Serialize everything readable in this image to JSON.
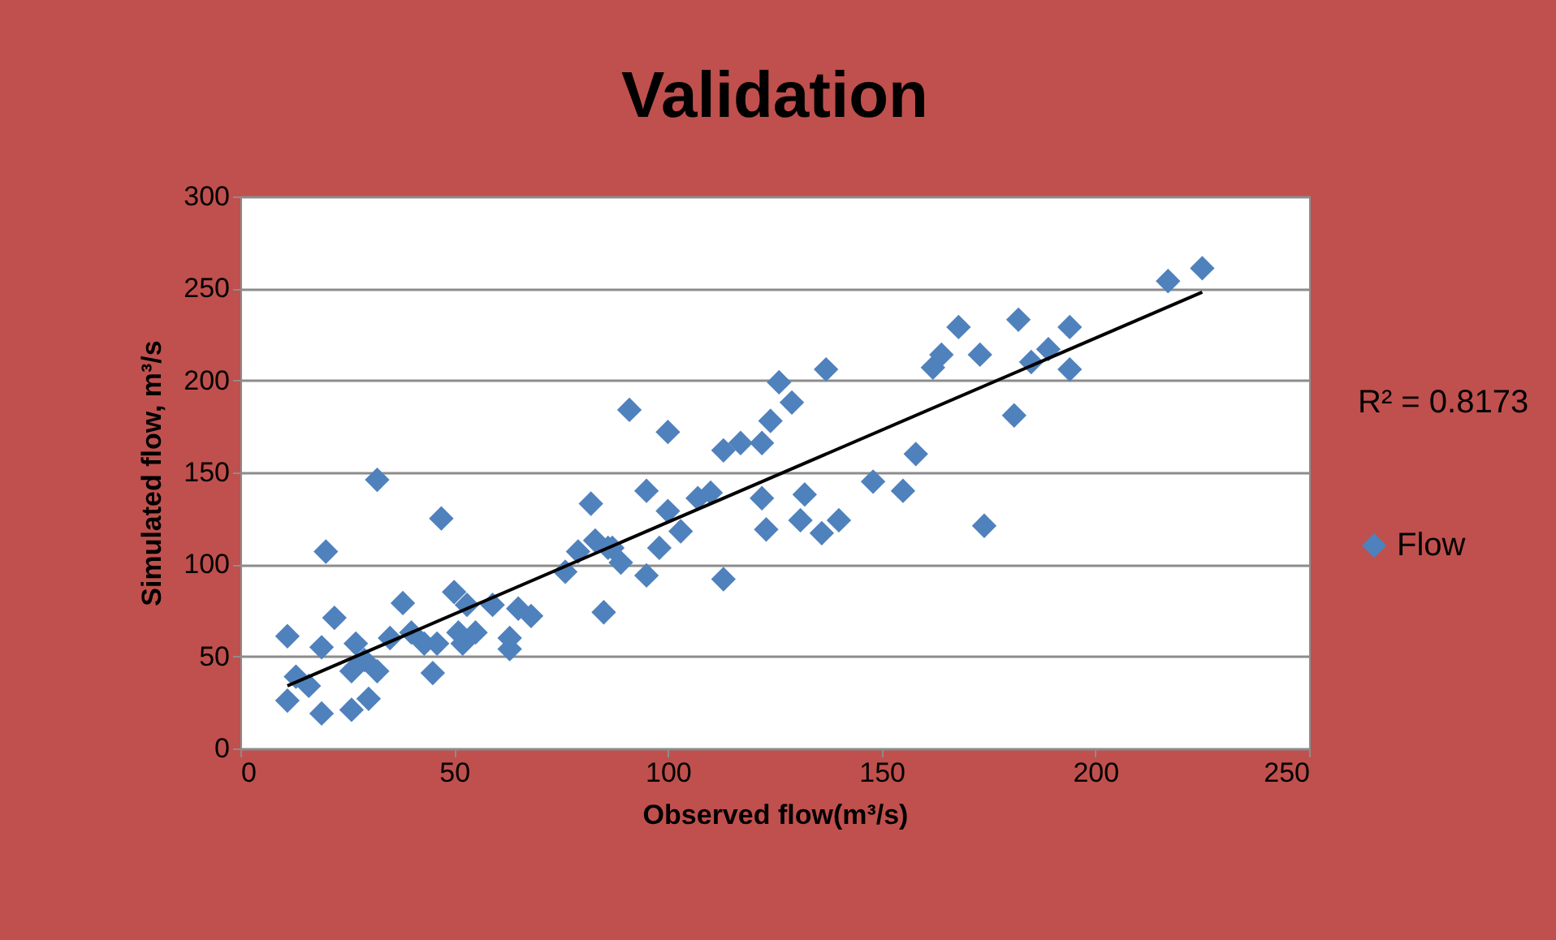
{
  "chart_data": {
    "type": "scatter",
    "title": "Validation",
    "xlabel": "Observed flow(m³/s)",
    "ylabel": "Simulated flow, m³/s",
    "xlim": [
      0,
      250
    ],
    "xticks": [
      0,
      50,
      100,
      150,
      200,
      250
    ],
    "ylim": [
      0,
      300
    ],
    "yticks": [
      0,
      50,
      100,
      150,
      200,
      250,
      300
    ],
    "grid": "y",
    "legend": "right",
    "annotations": [
      "R² = 0.8173"
    ],
    "series": [
      {
        "name": "Flow",
        "marker": "diamond",
        "color": "#4f81bd",
        "x": [
          11,
          13,
          11,
          19,
          16,
          20,
          22,
          19,
          26,
          30,
          27,
          26,
          32,
          29,
          32,
          35,
          38,
          40,
          43,
          45,
          46,
          47,
          50,
          51,
          52,
          55,
          53,
          59,
          63,
          65,
          68,
          63,
          76,
          79,
          82,
          83,
          85,
          86,
          89,
          87,
          91,
          95,
          100,
          95,
          100,
          98,
          103,
          107,
          110,
          113,
          113,
          117,
          122,
          124,
          126,
          129,
          137,
          122,
          123,
          132,
          131,
          136,
          140,
          148,
          155,
          158,
          174,
          181,
          162,
          164,
          168,
          173,
          182,
          185,
          189,
          194,
          194,
          217,
          225
        ],
        "values": [
          61,
          39,
          26,
          19,
          34,
          107,
          71,
          55,
          21,
          27,
          57,
          42,
          42,
          48,
          146,
          60,
          79,
          63,
          57,
          41,
          57,
          125,
          85,
          63,
          57,
          63,
          78,
          78,
          54,
          76,
          72,
          60,
          96,
          107,
          133,
          113,
          74,
          109,
          101,
          109,
          184,
          140,
          172,
          94,
          129,
          109,
          118,
          136,
          139,
          92,
          162,
          166,
          166,
          178,
          199,
          188,
          206,
          136,
          119,
          138,
          124,
          117,
          124,
          145,
          140,
          160,
          121,
          181,
          207,
          214,
          229,
          214,
          233,
          210,
          217,
          229,
          206,
          254,
          261
        ]
      },
      {
        "type": "line",
        "color": "#000000",
        "x": [
          11,
          225
        ],
        "values": [
          34,
          248
        ]
      }
    ]
  }
}
